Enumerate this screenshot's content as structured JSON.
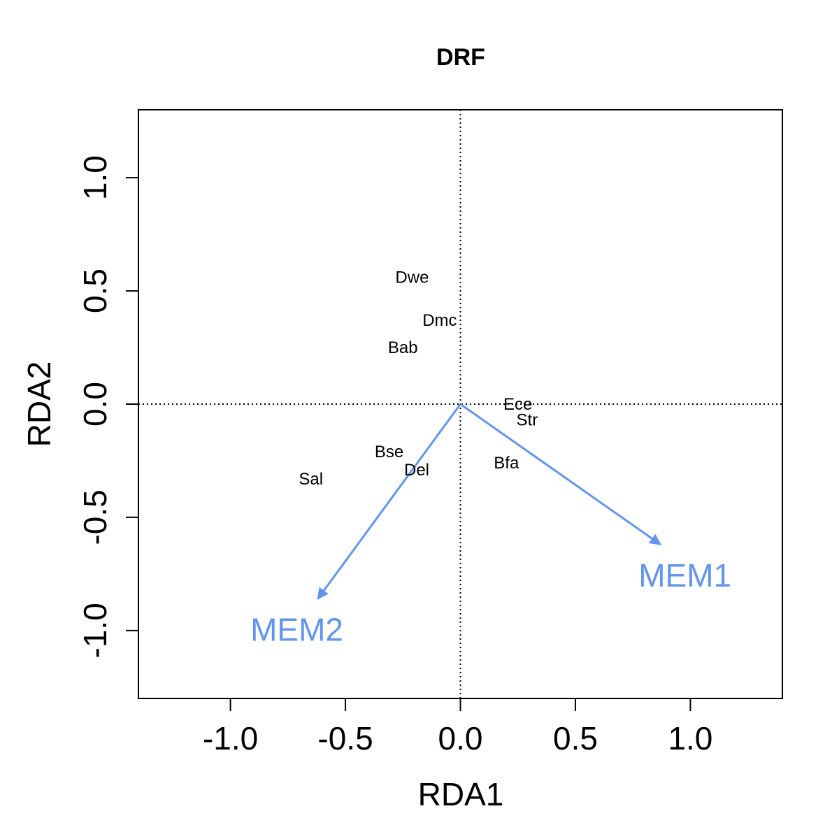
{
  "chart_data": {
    "type": "scatter",
    "title": "DRF",
    "xlabel": "RDA1",
    "ylabel": "RDA2",
    "xlim": [
      -1.4,
      1.4
    ],
    "ylim": [
      -1.3,
      1.3
    ],
    "xticks": [
      -1.0,
      -0.5,
      0.0,
      0.5,
      1.0
    ],
    "xtick_labels": [
      "-1.0",
      "-0.5",
      "0.0",
      "0.5",
      "1.0"
    ],
    "yticks": [
      -1.0,
      -0.5,
      0.0,
      0.5,
      1.0
    ],
    "ytick_labels": [
      "-1.0",
      "-0.5",
      "0.0",
      "0.5",
      "1.0"
    ],
    "reference_lines": {
      "x": 0,
      "y": 0,
      "style": "dotted"
    },
    "species": [
      {
        "label": "Dwe",
        "x": -0.21,
        "y": 0.56
      },
      {
        "label": "Dmc",
        "x": -0.09,
        "y": 0.37
      },
      {
        "label": "Bab",
        "x": -0.25,
        "y": 0.25
      },
      {
        "label": "Ece",
        "x": 0.25,
        "y": 0.0
      },
      {
        "label": "Str",
        "x": 0.29,
        "y": -0.07
      },
      {
        "label": "Bse",
        "x": -0.31,
        "y": -0.21
      },
      {
        "label": "Del",
        "x": -0.19,
        "y": -0.29
      },
      {
        "label": "Bfa",
        "x": 0.2,
        "y": -0.26
      },
      {
        "label": "Sal",
        "x": -0.65,
        "y": -0.33
      }
    ],
    "vectors": [
      {
        "label": "MEM1",
        "x": 0.87,
        "y": -0.62
      },
      {
        "label": "MEM2",
        "x": -0.62,
        "y": -0.86
      }
    ],
    "vector_color": "#6495ED"
  }
}
